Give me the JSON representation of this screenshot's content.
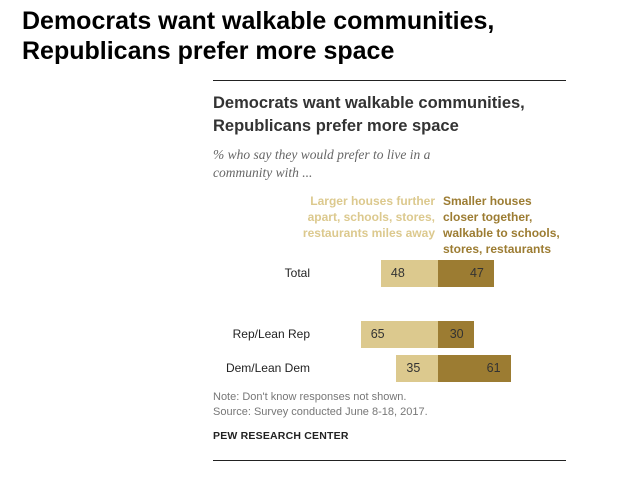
{
  "heading": "Democrats want walkable communities, Republicans prefer more space",
  "chart_data": {
    "type": "diverging-bar",
    "title": "Democrats want walkable communities, Republicans prefer more space",
    "subtitle": "% who say they would prefer to live in a community with ...",
    "categories": [
      "Total",
      "Rep/Lean Rep",
      "Dem/Lean Dem"
    ],
    "series": [
      {
        "name": "Larger houses further apart, schools, stores, restaurants miles away",
        "color": "#dcc98e",
        "values": [
          48,
          65,
          35
        ]
      },
      {
        "name": "Smaller houses closer together, walkable to schools, stores, restaurants",
        "color": "#9c7c32",
        "values": [
          47,
          30,
          61
        ]
      }
    ],
    "note": "Note: Don't know responses not shown.",
    "source": "Source: Survey conducted June 8-18, 2017.",
    "credit": "PEW RESEARCH CENTER"
  }
}
